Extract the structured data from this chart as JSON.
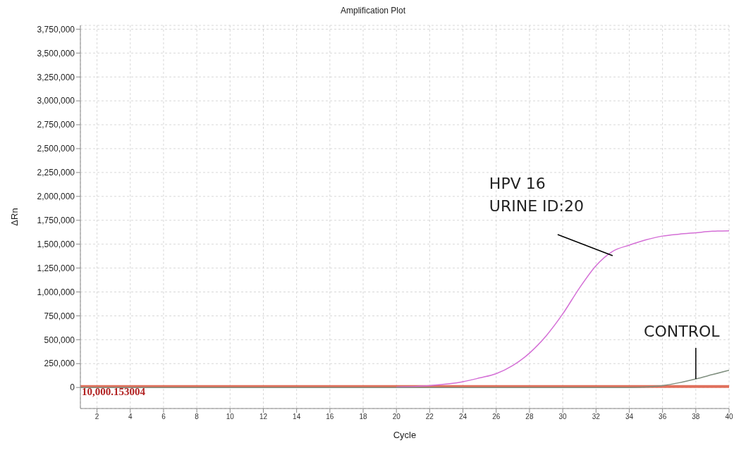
{
  "chart_data": {
    "type": "line",
    "title": "Amplification Plot",
    "xlabel": "Cycle",
    "ylabel": "ΔRn",
    "x": [
      1,
      5,
      10,
      15,
      20,
      22,
      24,
      25,
      26,
      27,
      28,
      29,
      30,
      31,
      32,
      33,
      34,
      35,
      36,
      37,
      38,
      39,
      40
    ],
    "series": [
      {
        "color": "#d46fd6",
        "values": [
          null,
          null,
          null,
          null,
          5000,
          20000,
          60000,
          100000,
          145000,
          230000,
          360000,
          540000,
          770000,
          1040000,
          1275000,
          1425000,
          1490000,
          1545000,
          1585000,
          1605000,
          1620000,
          1635000,
          1640000
        ]
      },
      {
        "color": "#7f8f7f",
        "values": [
          0,
          0,
          0,
          0,
          0,
          0,
          0,
          0,
          0,
          0,
          0,
          0,
          0,
          0,
          0,
          0,
          0,
          5000,
          20000,
          50000,
          90000,
          135000,
          180000
        ]
      }
    ],
    "xlim": [
      1,
      40
    ],
    "xticks": [
      2,
      4,
      6,
      8,
      10,
      12,
      14,
      16,
      18,
      20,
      22,
      24,
      26,
      28,
      30,
      32,
      34,
      36,
      38,
      40
    ],
    "ylim": [
      -220000,
      3790000
    ],
    "yticks": [
      0,
      {
        "value": 250000,
        "label": "250,000"
      },
      {
        "value": 500000,
        "label": "500,000"
      },
      {
        "value": 750000,
        "label": "750,000"
      },
      {
        "value": 1000000,
        "label": "1,000,000"
      },
      {
        "value": 1250000,
        "label": "1,250,000"
      },
      {
        "value": 1500000,
        "label": "1,500,000"
      },
      {
        "value": 1750000,
        "label": "1,750,000"
      },
      {
        "value": 2000000,
        "label": "2,000,000"
      },
      {
        "value": 2250000,
        "label": "2,250,000"
      },
      {
        "value": 2500000,
        "label": "2,500,000"
      },
      {
        "value": 2750000,
        "label": "2,750,000"
      },
      {
        "value": 3000000,
        "label": "3,000,000"
      },
      {
        "value": 3250000,
        "label": "3,250,000"
      },
      {
        "value": 3500000,
        "label": "3,500,000"
      },
      {
        "value": 3750000,
        "label": "3,750,000"
      }
    ],
    "grid": true,
    "marker": "none",
    "line_style": "solid",
    "ref_lines": [
      {
        "axis": "y",
        "value": 10000.153004,
        "label": "10,000.153004",
        "color": "#e0705c"
      }
    ],
    "annotations": [
      {
        "text": "HPV 16\nURINE ID:20",
        "x": 33,
        "y": 1380000
      },
      {
        "text": "CONTROL",
        "x": 38,
        "y": 90000
      }
    ]
  }
}
